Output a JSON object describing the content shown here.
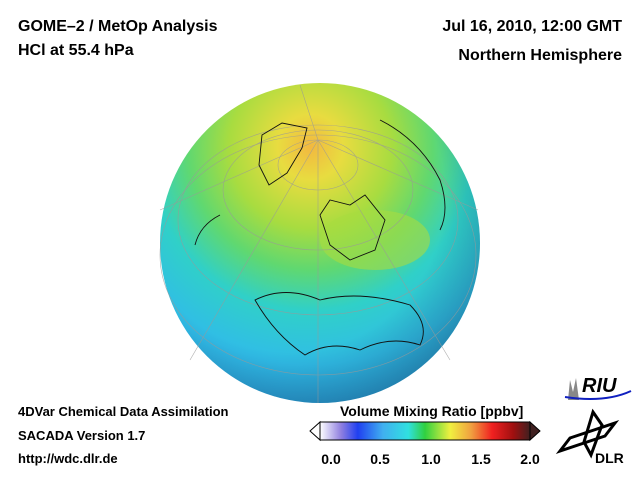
{
  "header": {
    "title_line1": "GOME–2 / MetOp Analysis",
    "title_line2": "HCl at 55.4 hPa",
    "date": "Jul 16, 2010, 12:00 GMT",
    "region": "Northern Hemisphere"
  },
  "footer": {
    "line1": "4DVar Chemical Data Assimilation",
    "line2": "SACADA Version 1.7",
    "line3": "http://wdc.dlr.de"
  },
  "colorbar": {
    "title": "Volume Mixing Ratio [ppbv]",
    "ticks": [
      "0.0",
      "0.5",
      "1.0",
      "1.5",
      "2.0"
    ],
    "range": [
      0.0,
      2.0
    ]
  },
  "logos": {
    "riu": "RIU",
    "dlr": "DLR"
  }
}
